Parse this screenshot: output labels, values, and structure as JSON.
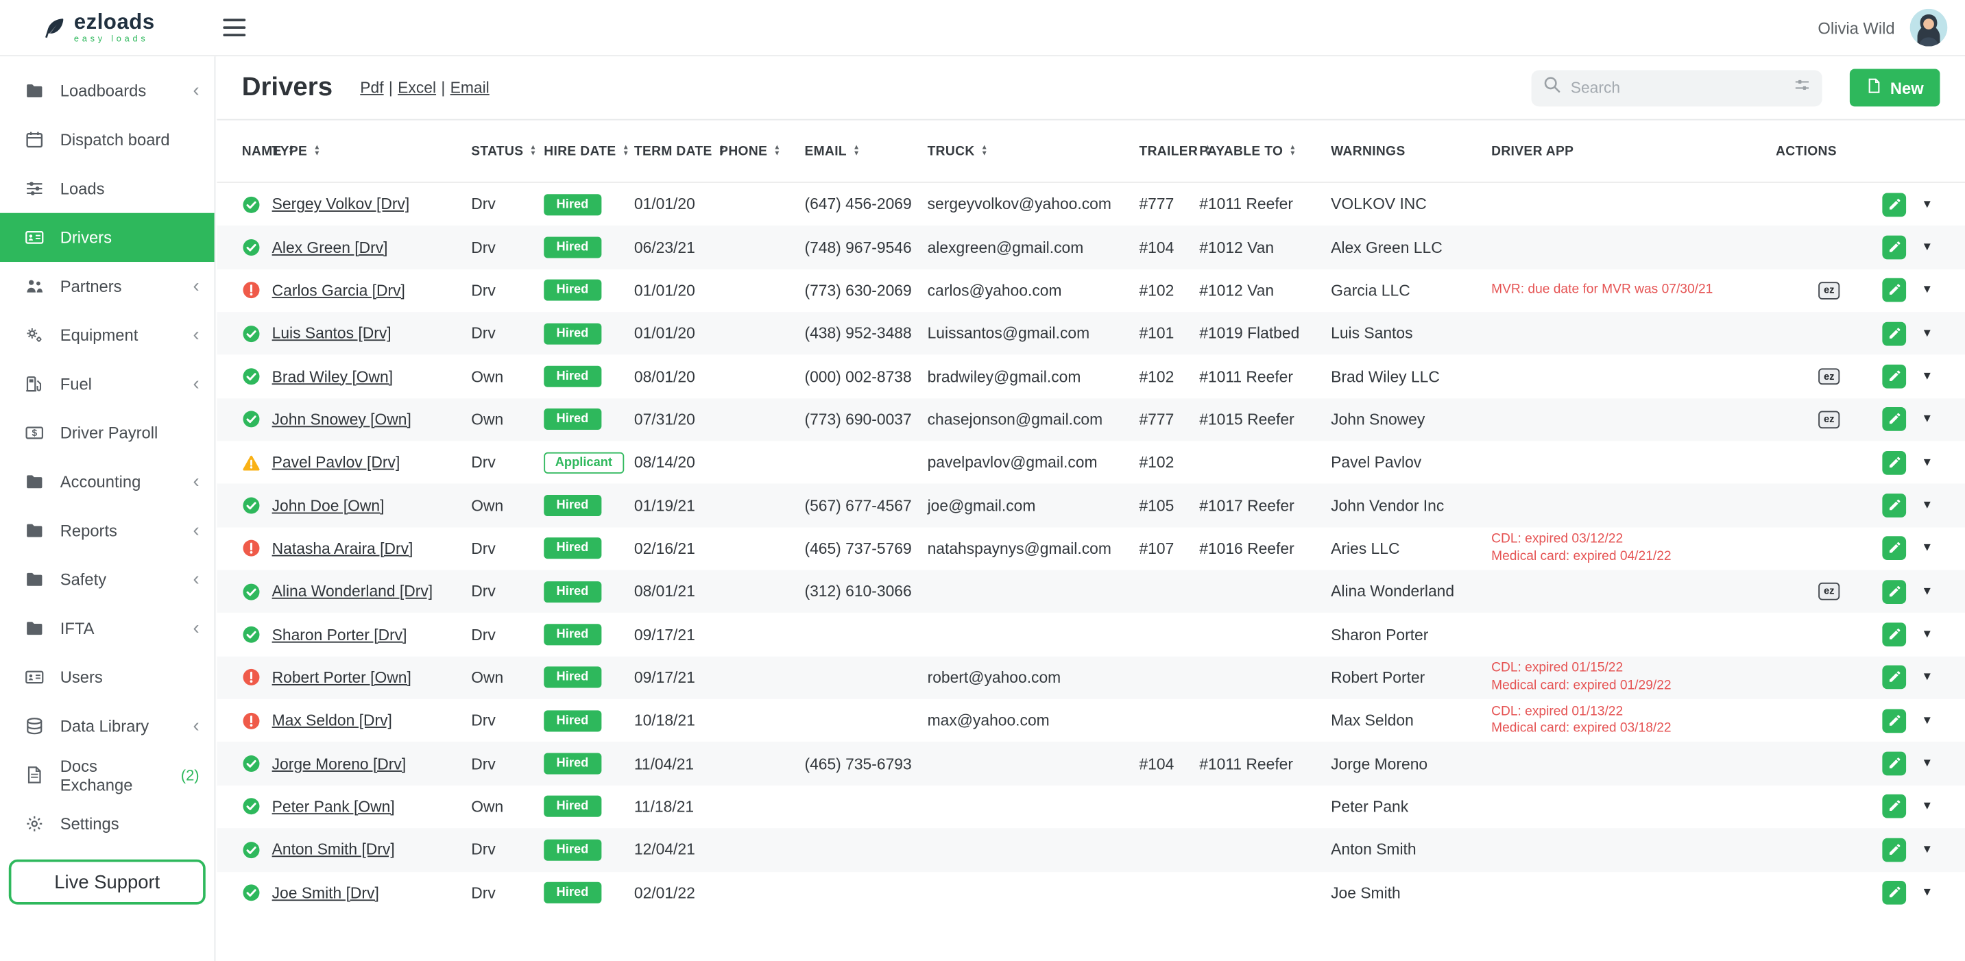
{
  "colors": {
    "accent": "#2eb85c",
    "warning_red": "#e55353",
    "warn_yellow": "#f9b115",
    "error_red": "#ef5a49"
  },
  "app": {
    "brand": "ezloads",
    "brand_sub": "easy loads",
    "user_name": "Olivia Wild"
  },
  "sidebar": {
    "items": [
      {
        "label": "Loadboards",
        "icon": "folder-icon",
        "chevron": true
      },
      {
        "label": "Dispatch board",
        "icon": "calendar-icon"
      },
      {
        "label": "Loads",
        "icon": "sliders-icon"
      },
      {
        "label": "Drivers",
        "icon": "id-card-icon",
        "active": true
      },
      {
        "label": "Partners",
        "icon": "people-icon",
        "chevron": true
      },
      {
        "label": "Equipment",
        "icon": "cogs-icon",
        "chevron": true
      },
      {
        "label": "Fuel",
        "icon": "fuel-pump-icon",
        "chevron": true
      },
      {
        "label": "Driver Payroll",
        "icon": "payroll-icon"
      },
      {
        "label": "Accounting",
        "icon": "folder-icon",
        "chevron": true
      },
      {
        "label": "Reports",
        "icon": "folder-icon",
        "chevron": true
      },
      {
        "label": "Safety",
        "icon": "folder-icon",
        "chevron": true
      },
      {
        "label": "IFTA",
        "icon": "folder-icon",
        "chevron": true
      },
      {
        "label": "Users",
        "icon": "id-card-icon"
      },
      {
        "label": "Data Library",
        "icon": "database-icon",
        "chevron": true
      },
      {
        "label": "Docs Exchange",
        "icon": "document-icon",
        "badge": "(2)"
      },
      {
        "label": "Settings",
        "icon": "gear-icon"
      }
    ],
    "live_support_label": "Live Support"
  },
  "header": {
    "title": "Drivers",
    "export_links": [
      "Pdf",
      "Excel",
      "Email"
    ],
    "search_placeholder": "Search",
    "new_button_label": "New"
  },
  "table": {
    "columns": [
      {
        "label": "NAME",
        "sortable": true
      },
      {
        "label": "TYPE",
        "sortable": true
      },
      {
        "label": "STATUS",
        "sortable": true
      },
      {
        "label": "HIRE DATE",
        "sortable": true
      },
      {
        "label": "TERM DATE",
        "sortable": true
      },
      {
        "label": "PHONE",
        "sortable": true
      },
      {
        "label": "EMAIL",
        "sortable": true
      },
      {
        "label": "TRUCK",
        "sortable": true
      },
      {
        "label": "TRAILER",
        "sortable": true
      },
      {
        "label": "PAYABLE TO",
        "sortable": true
      },
      {
        "label": "WARNINGS",
        "sortable": false
      },
      {
        "label": "DRIVER APP",
        "sortable": false
      },
      {
        "label": "ACTIONS",
        "sortable": false
      }
    ],
    "rows": [
      {
        "icon": "ok",
        "name": "Sergey Volkov [Drv]",
        "type": "Drv",
        "status": "Hired",
        "status_variant": "solid",
        "hire_date": "01/01/20",
        "term_date": "",
        "phone": "(647) 456-2069",
        "email": "sergeyvolkov@yahoo.com",
        "truck": "#777",
        "trailer": "#1011 Reefer",
        "payable_to": "VOLKOV INC",
        "warnings": [],
        "driver_app": ""
      },
      {
        "icon": "ok",
        "name": "Alex Green [Drv]",
        "type": "Drv",
        "status": "Hired",
        "status_variant": "solid",
        "hire_date": "06/23/21",
        "term_date": "",
        "phone": "(748) 967-9546",
        "email": "alexgreen@gmail.com",
        "truck": "#104",
        "trailer": "#1012 Van",
        "payable_to": "Alex Green LLC",
        "warnings": [],
        "driver_app": ""
      },
      {
        "icon": "error",
        "name": "Carlos Garcia [Drv]",
        "type": "Drv",
        "status": "Hired",
        "status_variant": "solid",
        "hire_date": "01/01/20",
        "term_date": "",
        "phone": "(773) 630-2069",
        "email": "carlos@yahoo.com",
        "truck": "#102",
        "trailer": "#1012 Van",
        "payable_to": "Garcia LLC",
        "warnings": [
          "MVR: due date for MVR was 07/30/21"
        ],
        "driver_app": "ez"
      },
      {
        "icon": "ok",
        "name": "Luis Santos [Drv]",
        "type": "Drv",
        "status": "Hired",
        "status_variant": "solid",
        "hire_date": "01/01/20",
        "term_date": "",
        "phone": "(438) 952-3488",
        "email": "Luissantos@gmail.com",
        "truck": "#101",
        "trailer": "#1019 Flatbed",
        "payable_to": "Luis Santos",
        "warnings": [],
        "driver_app": ""
      },
      {
        "icon": "ok",
        "name": "Brad Wiley [Own]",
        "type": "Own",
        "status": "Hired",
        "status_variant": "solid",
        "hire_date": "08/01/20",
        "term_date": "",
        "phone": "(000) 002-8738",
        "email": "bradwiley@gmail.com",
        "truck": "#102",
        "trailer": "#1011 Reefer",
        "payable_to": "Brad Wiley LLC",
        "warnings": [],
        "driver_app": "ez"
      },
      {
        "icon": "ok",
        "name": "John Snowey [Own]",
        "type": "Own",
        "status": "Hired",
        "status_variant": "solid",
        "hire_date": "07/31/20",
        "term_date": "",
        "phone": "(773) 690-0037",
        "email": "chasejonson@gmail.com",
        "truck": "#777",
        "trailer": "#1015 Reefer",
        "payable_to": "John Snowey",
        "warnings": [],
        "driver_app": "ez"
      },
      {
        "icon": "warn",
        "name": "Pavel Pavlov [Drv]",
        "type": "Drv",
        "status": "Applicant",
        "status_variant": "outline",
        "hire_date": "08/14/20",
        "term_date": "",
        "phone": "",
        "email": "pavelpavlov@gmail.com",
        "truck": "#102",
        "trailer": "",
        "payable_to": "Pavel Pavlov",
        "warnings": [],
        "driver_app": ""
      },
      {
        "icon": "ok",
        "name": "John Doe [Own]",
        "type": "Own",
        "status": "Hired",
        "status_variant": "solid",
        "hire_date": "01/19/21",
        "term_date": "",
        "phone": "(567) 677-4567",
        "email": "joe@gmail.com",
        "truck": "#105",
        "trailer": "#1017 Reefer",
        "payable_to": "John Vendor Inc",
        "warnings": [],
        "driver_app": ""
      },
      {
        "icon": "error",
        "name": "Natasha Araira [Drv]",
        "type": "Drv",
        "status": "Hired",
        "status_variant": "solid",
        "hire_date": "02/16/21",
        "term_date": "",
        "phone": "(465) 737-5769",
        "email": "natahspaynys@gmail.com",
        "truck": "#107",
        "trailer": "#1016 Reefer",
        "payable_to": "Aries LLC",
        "warnings": [
          "CDL: expired 03/12/22",
          "Medical card: expired 04/21/22"
        ],
        "driver_app": ""
      },
      {
        "icon": "ok",
        "name": "Alina Wonderland [Drv]",
        "type": "Drv",
        "status": "Hired",
        "status_variant": "solid",
        "hire_date": "08/01/21",
        "term_date": "",
        "phone": "(312) 610-3066",
        "email": "",
        "truck": "",
        "trailer": "",
        "payable_to": "Alina Wonderland",
        "warnings": [],
        "driver_app": "ez"
      },
      {
        "icon": "ok",
        "name": "Sharon Porter [Drv]",
        "type": "Drv",
        "status": "Hired",
        "status_variant": "solid",
        "hire_date": "09/17/21",
        "term_date": "",
        "phone": "",
        "email": "",
        "truck": "",
        "trailer": "",
        "payable_to": "Sharon Porter",
        "warnings": [],
        "driver_app": ""
      },
      {
        "icon": "error",
        "name": "Robert Porter [Own]",
        "type": "Own",
        "status": "Hired",
        "status_variant": "solid",
        "hire_date": "09/17/21",
        "term_date": "",
        "phone": "",
        "email": "robert@yahoo.com",
        "truck": "",
        "trailer": "",
        "payable_to": "Robert Porter",
        "warnings": [
          "CDL: expired 01/15/22",
          "Medical card: expired 01/29/22"
        ],
        "driver_app": ""
      },
      {
        "icon": "error",
        "name": "Max Seldon [Drv]",
        "type": "Drv",
        "status": "Hired",
        "status_variant": "solid",
        "hire_date": "10/18/21",
        "term_date": "",
        "phone": "",
        "email": "max@yahoo.com",
        "truck": "",
        "trailer": "",
        "payable_to": "Max Seldon",
        "warnings": [
          "CDL: expired 01/13/22",
          "Medical card: expired 03/18/22"
        ],
        "driver_app": ""
      },
      {
        "icon": "ok",
        "name": "Jorge Moreno [Drv]",
        "type": "Drv",
        "status": "Hired",
        "status_variant": "solid",
        "hire_date": "11/04/21",
        "term_date": "",
        "phone": "(465) 735-6793",
        "email": "",
        "truck": "#104",
        "trailer": "#1011 Reefer",
        "payable_to": "Jorge Moreno",
        "warnings": [],
        "driver_app": ""
      },
      {
        "icon": "ok",
        "name": "Peter Pank [Own]",
        "type": "Own",
        "status": "Hired",
        "status_variant": "solid",
        "hire_date": "11/18/21",
        "term_date": "",
        "phone": "",
        "email": "",
        "truck": "",
        "trailer": "",
        "payable_to": "Peter Pank",
        "warnings": [],
        "driver_app": ""
      },
      {
        "icon": "ok",
        "name": "Anton Smith [Drv]",
        "type": "Drv",
        "status": "Hired",
        "status_variant": "solid",
        "hire_date": "12/04/21",
        "term_date": "",
        "phone": "",
        "email": "",
        "truck": "",
        "trailer": "",
        "payable_to": "Anton Smith",
        "warnings": [],
        "driver_app": ""
      },
      {
        "icon": "ok",
        "name": "Joe Smith [Drv]",
        "type": "Drv",
        "status": "Hired",
        "status_variant": "solid",
        "hire_date": "02/01/22",
        "term_date": "",
        "phone": "",
        "email": "",
        "truck": "",
        "trailer": "",
        "payable_to": "Joe Smith",
        "warnings": [],
        "driver_app": ""
      }
    ]
  }
}
